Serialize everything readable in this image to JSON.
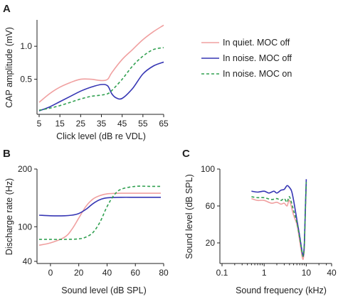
{
  "colors": {
    "quiet_off": "#f0a0a0",
    "noise_off": "#3636b4",
    "noise_on": "#30a050"
  },
  "chart_data": [
    {
      "panel": "A",
      "type": "line",
      "xlabel": "Click level (dB re VDL)",
      "ylabel": "CAP amplitude (mV)",
      "xlim": [
        5,
        65
      ],
      "ylim": [
        0,
        1.4
      ],
      "xticks": [
        5,
        15,
        25,
        35,
        45,
        55,
        65
      ],
      "yticks": [
        0.5,
        1.0
      ],
      "ytick_labels": [
        "0.5",
        "1.0"
      ],
      "legend": "right",
      "series": [
        {
          "name": "In quiet. MOC off",
          "style": "quiet_off",
          "x": [
            5,
            10,
            15,
            20,
            25,
            30,
            35,
            38,
            40,
            45,
            50,
            55,
            60,
            65
          ],
          "y": [
            0.15,
            0.28,
            0.38,
            0.45,
            0.5,
            0.5,
            0.48,
            0.5,
            0.6,
            0.8,
            0.95,
            1.1,
            1.22,
            1.32
          ]
        },
        {
          "name": "In noise. MOC off",
          "style": "noise_off",
          "x": [
            5,
            10,
            15,
            20,
            25,
            30,
            35,
            38,
            40,
            42,
            45,
            50,
            55,
            60,
            65
          ],
          "y": [
            0.02,
            0.08,
            0.16,
            0.24,
            0.32,
            0.38,
            0.42,
            0.4,
            0.28,
            0.22,
            0.21,
            0.36,
            0.58,
            0.7,
            0.76
          ]
        },
        {
          "name": "In noise. MOC on",
          "style": "noise_on",
          "x": [
            5,
            10,
            15,
            20,
            25,
            30,
            35,
            38,
            40,
            45,
            50,
            55,
            60,
            65
          ],
          "y": [
            0.03,
            0.06,
            0.1,
            0.15,
            0.2,
            0.24,
            0.26,
            0.28,
            0.33,
            0.5,
            0.7,
            0.85,
            0.95,
            0.98
          ]
        }
      ]
    },
    {
      "panel": "B",
      "type": "line",
      "xlabel": "Sound level (dB SPL)",
      "ylabel": "Discharge rate (Hz)",
      "xlim": [
        -8,
        80
      ],
      "ylim": [
        40,
        200
      ],
      "xticks": [
        0,
        20,
        40,
        60,
        80
      ],
      "yticks": [
        40,
        100,
        200
      ],
      "series": [
        {
          "name": "In quiet. MOC off",
          "style": "quiet_off",
          "x": [
            -8,
            0,
            10,
            15,
            20,
            25,
            30,
            35,
            40,
            50,
            60,
            70,
            78
          ],
          "y": [
            68,
            72,
            82,
            95,
            115,
            135,
            148,
            154,
            157,
            158,
            158,
            158,
            158
          ]
        },
        {
          "name": "In noise. MOC off",
          "style": "noise_off",
          "x": [
            -8,
            0,
            10,
            15,
            20,
            25,
            30,
            35,
            40,
            50,
            60,
            70,
            78
          ],
          "y": [
            120,
            119,
            119,
            120,
            123,
            130,
            140,
            147,
            150,
            151,
            151,
            151,
            151
          ]
        },
        {
          "name": "In noise. MOC on",
          "style": "noise_on",
          "x": [
            -8,
            0,
            10,
            20,
            25,
            30,
            35,
            40,
            45,
            50,
            60,
            70,
            78
          ],
          "y": [
            78,
            78,
            78,
            79,
            82,
            90,
            108,
            135,
            155,
            165,
            170,
            170,
            170
          ]
        }
      ]
    },
    {
      "panel": "C",
      "type": "line",
      "xscale": "log",
      "xlabel": "Sound frequency (kHz)",
      "ylabel": "Sound level (dB SPL)",
      "xlim": [
        0.1,
        40
      ],
      "ylim": [
        0,
        100
      ],
      "xticks": [
        0.1,
        1,
        10,
        40
      ],
      "xtick_labels": [
        "0.1",
        "1",
        "10",
        "40"
      ],
      "yticks": [
        20,
        60,
        100
      ],
      "series": [
        {
          "name": "In quiet. MOC off",
          "style": "quiet_off",
          "x": [
            0.5,
            0.7,
            1,
            1.5,
            2,
            2.5,
            3,
            3.5,
            4,
            5,
            6,
            7,
            8,
            8.5,
            9,
            9.5,
            10
          ],
          "y": [
            68,
            66,
            66,
            63,
            64,
            62,
            63,
            60,
            66,
            50,
            40,
            22,
            5,
            3,
            15,
            50,
            84
          ]
        },
        {
          "name": "In noise. MOC off",
          "style": "noise_off",
          "x": [
            0.5,
            0.7,
            1,
            1.3,
            1.7,
            2,
            2.5,
            3,
            3.5,
            4,
            4.5,
            5,
            6,
            7,
            8,
            8.5,
            9,
            9.5,
            10
          ],
          "y": [
            76,
            75,
            76,
            74,
            76,
            74,
            77,
            78,
            82,
            80,
            76,
            66,
            45,
            27,
            10,
            6,
            20,
            55,
            89
          ]
        },
        {
          "name": "In noise. MOC on",
          "style": "noise_on",
          "x": [
            0.5,
            0.7,
            1,
            1.5,
            2,
            2.5,
            3,
            3.5,
            4,
            5,
            6,
            7,
            8,
            8.5,
            9,
            9.5,
            10
          ],
          "y": [
            70,
            69,
            69,
            67,
            68,
            66,
            68,
            64,
            70,
            55,
            42,
            25,
            9,
            6,
            18,
            52,
            86
          ]
        }
      ]
    }
  ]
}
